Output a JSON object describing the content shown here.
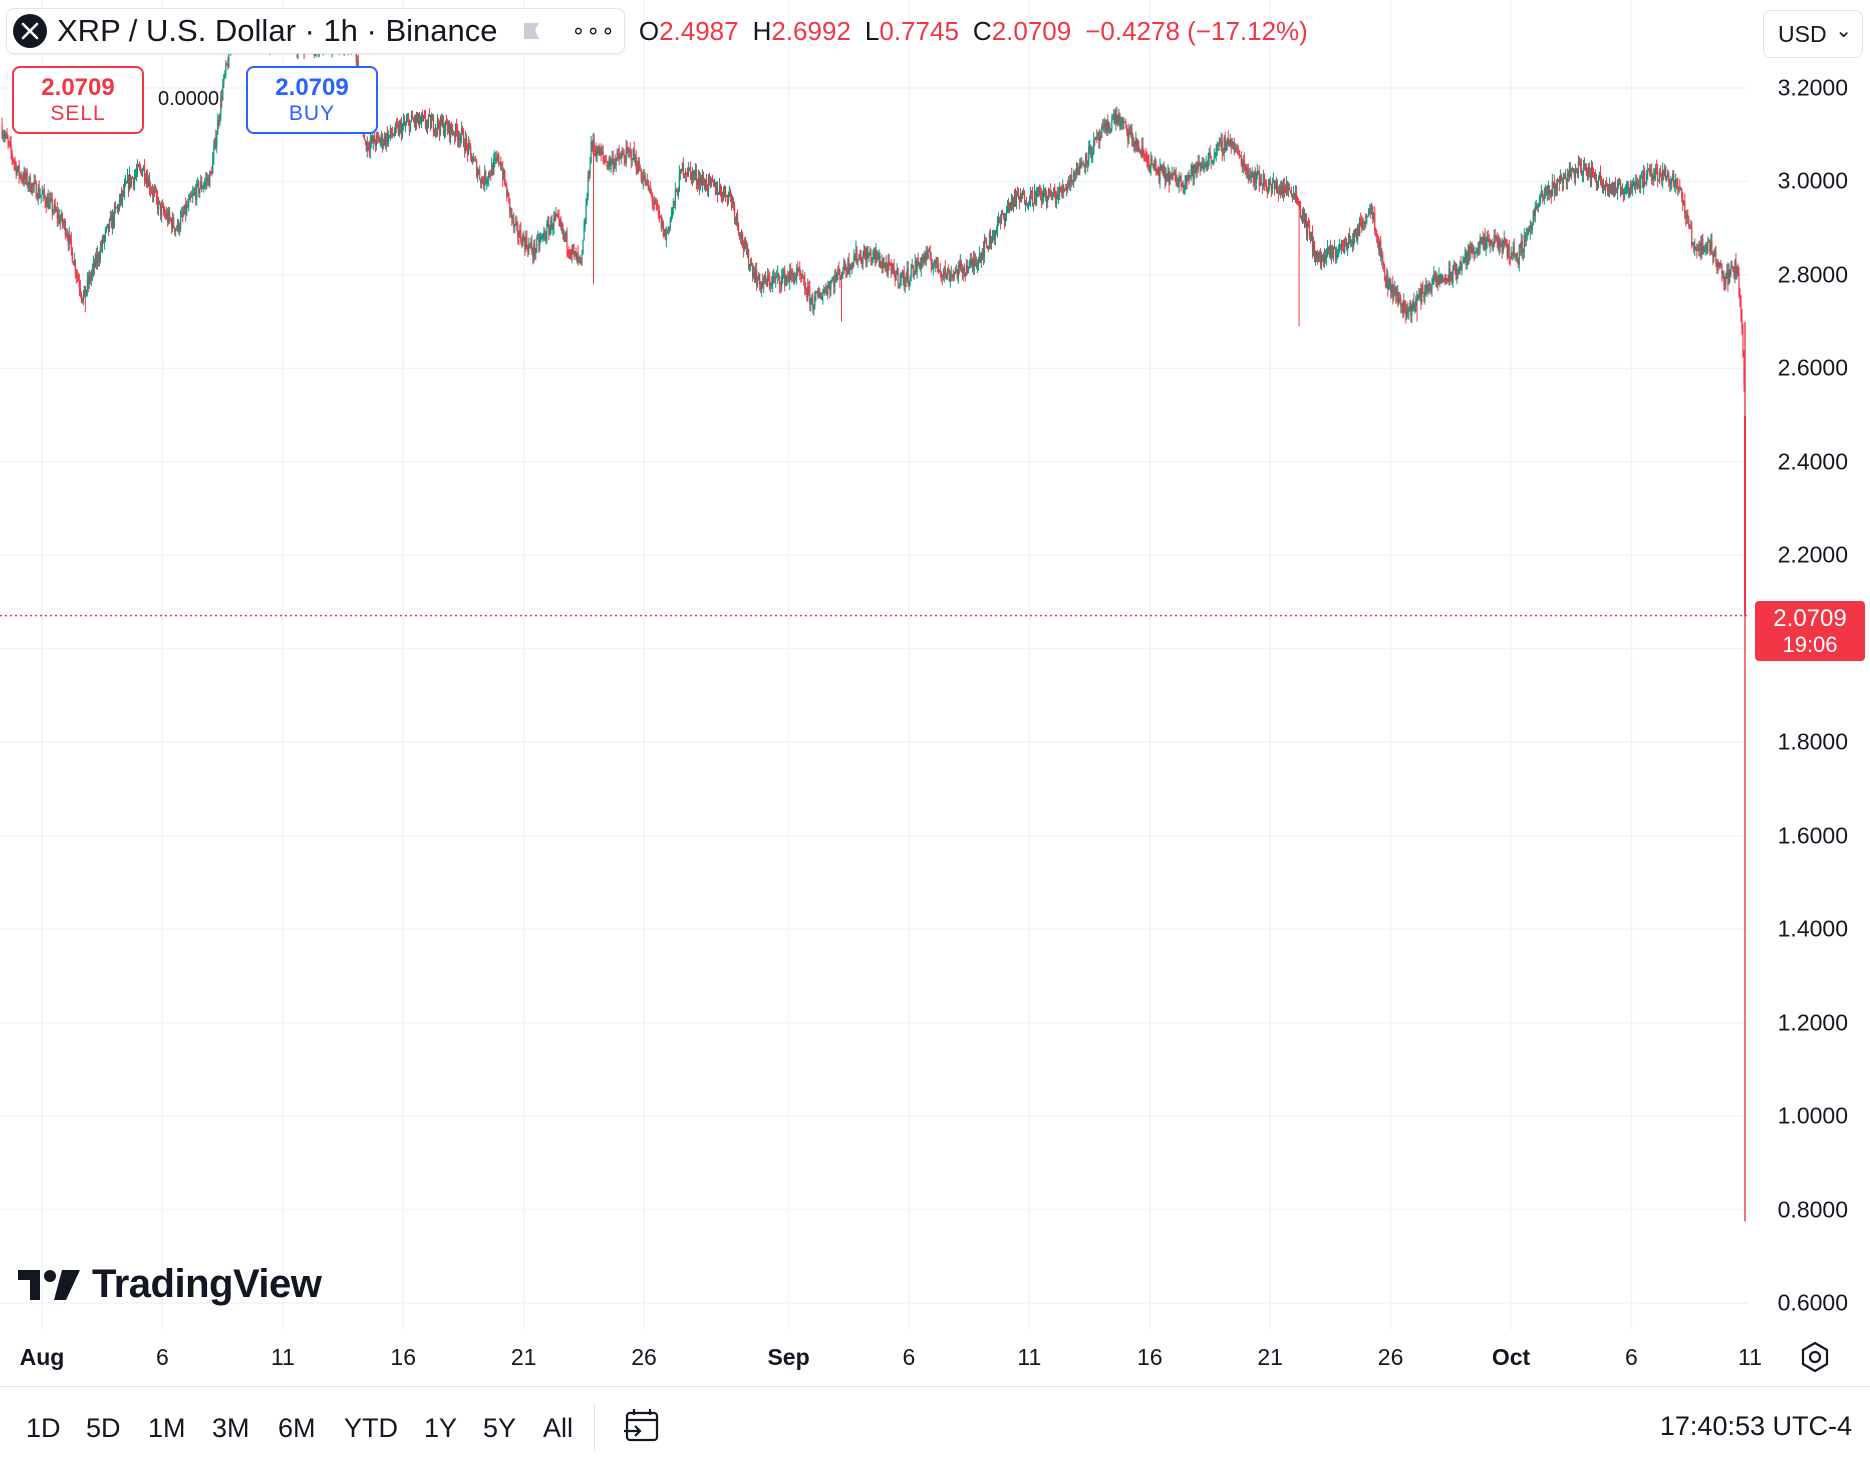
{
  "header": {
    "symbol_title": "XRP / U.S. Dollar · 1h · Binance",
    "more_label": "∘∘∘",
    "ohlc": {
      "o_key": "O",
      "o_val": "2.4987",
      "h_key": "H",
      "h_val": "2.6992",
      "l_key": "L",
      "l_val": "0.7745",
      "c_key": "C",
      "c_val": "2.0709",
      "change": "−0.4278 (−17.12%)"
    }
  },
  "trade": {
    "sell_price": "2.0709",
    "sell_label": "SELL",
    "spread": "0.0000",
    "buy_price": "2.0709",
    "buy_label": "BUY"
  },
  "currency": {
    "value": "USD",
    "chevron": "⌄"
  },
  "price_tag": {
    "price": "2.0709",
    "countdown": "19:06"
  },
  "brand": {
    "name": "TradingView"
  },
  "colors": {
    "up": "#089981",
    "down": "#f23645",
    "buy": "#2962ff",
    "grid": "#f0f3fa"
  },
  "bottom_bar": {
    "ranges": [
      "1D",
      "5D",
      "1M",
      "3M",
      "6M",
      "YTD",
      "1Y",
      "5Y",
      "All"
    ],
    "clock": "17:40:53 UTC-4"
  },
  "chart_data": {
    "type": "candlestick",
    "interval": "1h",
    "y_ticks": [
      "3.2000",
      "3.0000",
      "2.8000",
      "2.6000",
      "2.4000",
      "2.2000",
      "1.8000",
      "1.6000",
      "1.4000",
      "1.2000",
      "1.0000",
      "0.8000",
      "0.6000"
    ],
    "ylim": [
      0.55,
      3.35
    ],
    "last_price": 2.0709,
    "x_ticks": [
      {
        "label": "Aug",
        "day": 0,
        "major": true
      },
      {
        "label": "6",
        "day": 5,
        "major": false
      },
      {
        "label": "11",
        "day": 10,
        "major": false
      },
      {
        "label": "16",
        "day": 15,
        "major": false
      },
      {
        "label": "21",
        "day": 20,
        "major": false
      },
      {
        "label": "26",
        "day": 25,
        "major": false
      },
      {
        "label": "Sep",
        "day": 31,
        "major": true
      },
      {
        "label": "6",
        "day": 36,
        "major": false
      },
      {
        "label": "11",
        "day": 41,
        "major": false
      },
      {
        "label": "16",
        "day": 46,
        "major": false
      },
      {
        "label": "21",
        "day": 51,
        "major": false
      },
      {
        "label": "26",
        "day": 56,
        "major": false
      },
      {
        "label": "Oct",
        "day": 61,
        "major": true
      },
      {
        "label": "6",
        "day": 66,
        "major": false
      },
      {
        "label": "11",
        "day": 71,
        "major": false
      }
    ],
    "xlim": [
      -1.7,
      70.8
    ],
    "close_path": [
      [
        -1.7,
        3.12
      ],
      [
        -1.0,
        3.02
      ],
      [
        0.2,
        2.96
      ],
      [
        1.0,
        2.9
      ],
      [
        1.7,
        2.75
      ],
      [
        2.6,
        2.88
      ],
      [
        3.6,
        3.0
      ],
      [
        4.2,
        3.03
      ],
      [
        4.9,
        2.94
      ],
      [
        5.6,
        2.9
      ],
      [
        6.4,
        2.98
      ],
      [
        7.0,
        3.01
      ],
      [
        7.5,
        3.2
      ],
      [
        8.0,
        3.33
      ],
      [
        9.0,
        3.31
      ],
      [
        10.0,
        3.3
      ],
      [
        11.0,
        3.29
      ],
      [
        13.0,
        3.3
      ],
      [
        13.4,
        3.08
      ],
      [
        14.2,
        3.09
      ],
      [
        15.4,
        3.13
      ],
      [
        16.6,
        3.12
      ],
      [
        17.4,
        3.1
      ],
      [
        18.3,
        3.0
      ],
      [
        19.0,
        3.05
      ],
      [
        19.6,
        2.9
      ],
      [
        20.4,
        2.85
      ],
      [
        21.3,
        2.92
      ],
      [
        22.1,
        2.84
      ],
      [
        22.4,
        2.82
      ],
      [
        22.8,
        3.08
      ],
      [
        23.5,
        3.04
      ],
      [
        24.5,
        3.06
      ],
      [
        25.3,
        2.97
      ],
      [
        25.9,
        2.88
      ],
      [
        26.6,
        3.03
      ],
      [
        27.4,
        3.0
      ],
      [
        28.6,
        2.97
      ],
      [
        29.2,
        2.85
      ],
      [
        29.8,
        2.78
      ],
      [
        30.4,
        2.79
      ],
      [
        31.4,
        2.8
      ],
      [
        32.0,
        2.74
      ],
      [
        32.7,
        2.78
      ],
      [
        33.8,
        2.84
      ],
      [
        34.6,
        2.84
      ],
      [
        35.2,
        2.81
      ],
      [
        35.8,
        2.79
      ],
      [
        36.7,
        2.84
      ],
      [
        37.6,
        2.8
      ],
      [
        38.6,
        2.82
      ],
      [
        39.3,
        2.87
      ],
      [
        40.3,
        2.96
      ],
      [
        41.3,
        2.97
      ],
      [
        42.2,
        2.97
      ],
      [
        43.2,
        3.04
      ],
      [
        44.0,
        3.1
      ],
      [
        44.6,
        3.14
      ],
      [
        45.4,
        3.08
      ],
      [
        46.3,
        3.02
      ],
      [
        47.3,
        3.0
      ],
      [
        48.3,
        3.04
      ],
      [
        49.3,
        3.09
      ],
      [
        50.1,
        3.02
      ],
      [
        51.0,
        2.99
      ],
      [
        52.0,
        2.98
      ],
      [
        53.0,
        2.83
      ],
      [
        53.7,
        2.85
      ],
      [
        54.5,
        2.88
      ],
      [
        55.2,
        2.95
      ],
      [
        55.8,
        2.79
      ],
      [
        56.7,
        2.72
      ],
      [
        57.6,
        2.78
      ],
      [
        58.6,
        2.8
      ],
      [
        59.5,
        2.86
      ],
      [
        60.4,
        2.87
      ],
      [
        61.3,
        2.84
      ],
      [
        62.2,
        2.96
      ],
      [
        63.2,
        3.01
      ],
      [
        63.9,
        3.03
      ],
      [
        64.8,
        3.0
      ],
      [
        65.5,
        2.98
      ],
      [
        66.3,
        3.0
      ],
      [
        67.2,
        3.02
      ],
      [
        67.9,
        3.0
      ],
      [
        68.6,
        2.86
      ],
      [
        69.3,
        2.86
      ],
      [
        69.9,
        2.79
      ],
      [
        70.4,
        2.82
      ],
      [
        70.5,
        2.74
      ],
      [
        70.6,
        2.68
      ],
      [
        70.7,
        2.55
      ],
      [
        70.8,
        2.07
      ]
    ],
    "wick_noise": 0.018,
    "big_candles": [
      {
        "day": 70.8,
        "open": 2.4987,
        "high": 2.6992,
        "low": 0.7745,
        "close": 2.0709
      }
    ]
  }
}
